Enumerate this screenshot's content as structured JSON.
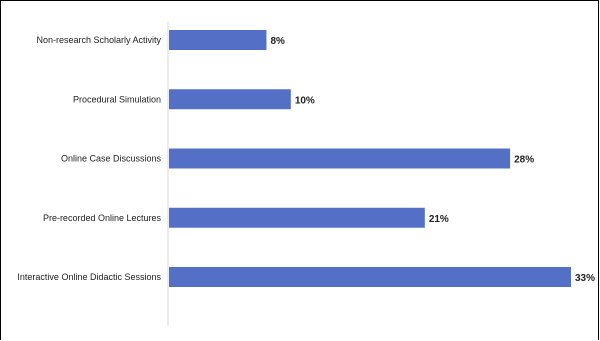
{
  "colors": {
    "bar": "#5470c6",
    "axis": "#d9d9d9"
  },
  "chart_data": {
    "type": "bar",
    "orientation": "horizontal",
    "title": "",
    "xlabel": "",
    "ylabel": "",
    "categories": [
      "Non-research Scholarly Activity",
      "Procedural Simulation",
      "Online Case Discussions",
      "Pre-recorded Online Lectures",
      "Interactive Online Didactic Sessions"
    ],
    "values": [
      8,
      10,
      28,
      21,
      33
    ],
    "value_labels": [
      "8%",
      "10%",
      "28%",
      "21%",
      "33%"
    ],
    "xlim": [
      0,
      33
    ],
    "grid": false,
    "legend": "none"
  }
}
